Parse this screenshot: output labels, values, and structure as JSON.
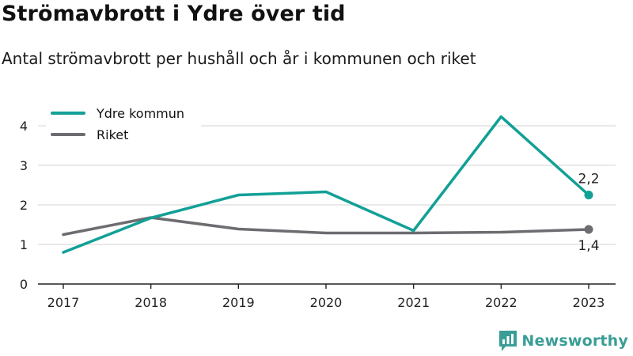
{
  "header": {
    "title": "Strömavbrott i Ydre över tid",
    "subtitle": "Antal strömavbrott per hushåll och år i kommunen och riket"
  },
  "brand": {
    "name": "Newsworthy",
    "icon": "newsworthy-logo-icon",
    "color": "#3a9e96"
  },
  "chart_data": {
    "type": "line",
    "title": "Strömavbrott i Ydre över tid",
    "subtitle": "Antal strömavbrott per hushåll och år i kommunen och riket",
    "xlabel": "",
    "ylabel": "",
    "categories": [
      "2017",
      "2018",
      "2019",
      "2020",
      "2021",
      "2022",
      "2023"
    ],
    "ylim": [
      0,
      4.4
    ],
    "yticks": [
      {
        "value": 0,
        "label": "0"
      },
      {
        "value": 1,
        "label": "1"
      },
      {
        "value": 2,
        "label": "2"
      },
      {
        "value": 3,
        "label": "3"
      },
      {
        "value": 4,
        "label": "4"
      }
    ],
    "grid": true,
    "legend": "top-left",
    "series": [
      {
        "name": "Ydre kommun",
        "color": "#12a096",
        "values": [
          0.8,
          1.67,
          2.25,
          2.33,
          1.35,
          4.23,
          2.25
        ],
        "end_label": "2,2",
        "end_label_position": "above"
      },
      {
        "name": "Riket",
        "color": "#6d6c70",
        "values": [
          1.25,
          1.68,
          1.39,
          1.29,
          1.29,
          1.31,
          1.38
        ],
        "end_label": "1,4",
        "end_label_position": "below"
      }
    ]
  }
}
